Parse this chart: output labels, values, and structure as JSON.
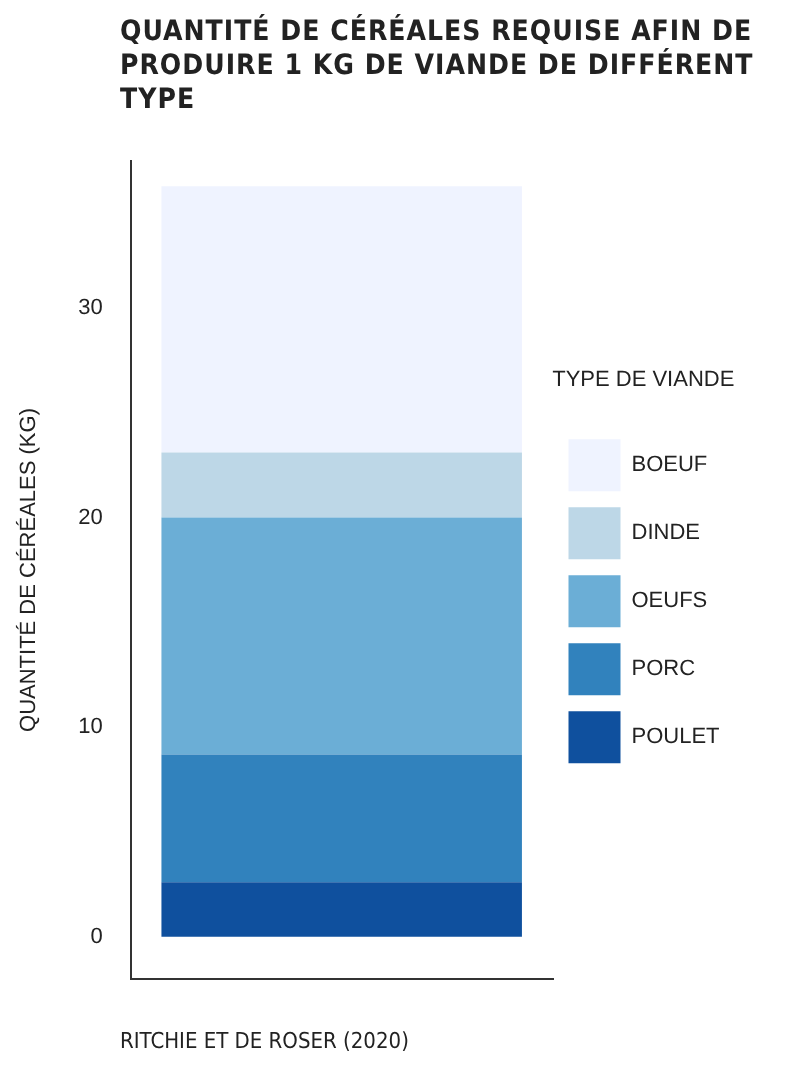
{
  "chart_data": {
    "type": "bar",
    "title": "QUANTITÉ DE CÉRÉALES REQUISE AFIN DE PRODUIRE 1 KG DE VIANDE DE DIFFÉRENT TYPE",
    "ylabel": "QUANTITÉ DE CÉRÉALES (KG)",
    "legend_title": "TYPE DE VIANDE",
    "annotations": [
      "RITCHIE ET DE ROSER (2020)"
    ],
    "categories": [
      null
    ],
    "stacked": true,
    "ylim": [
      -2,
      37
    ],
    "yticks": [
      0,
      10,
      20,
      30
    ],
    "tick_labels": "y",
    "grid": false,
    "legend": "right",
    "series": [
      {
        "name": "POULET",
        "color": "#0f509e",
        "values": [
          2.6
        ]
      },
      {
        "name": "PORC",
        "color": "#3182bd",
        "values": [
          6.1
        ]
      },
      {
        "name": "OEUFS",
        "color": "#6baed6",
        "values": [
          11.3
        ]
      },
      {
        "name": "DINDE",
        "color": "#bdd7e7",
        "values": [
          3.1
        ]
      },
      {
        "name": "BOEUF",
        "color": "#eff3ff",
        "values": [
          12.7
        ]
      }
    ]
  }
}
